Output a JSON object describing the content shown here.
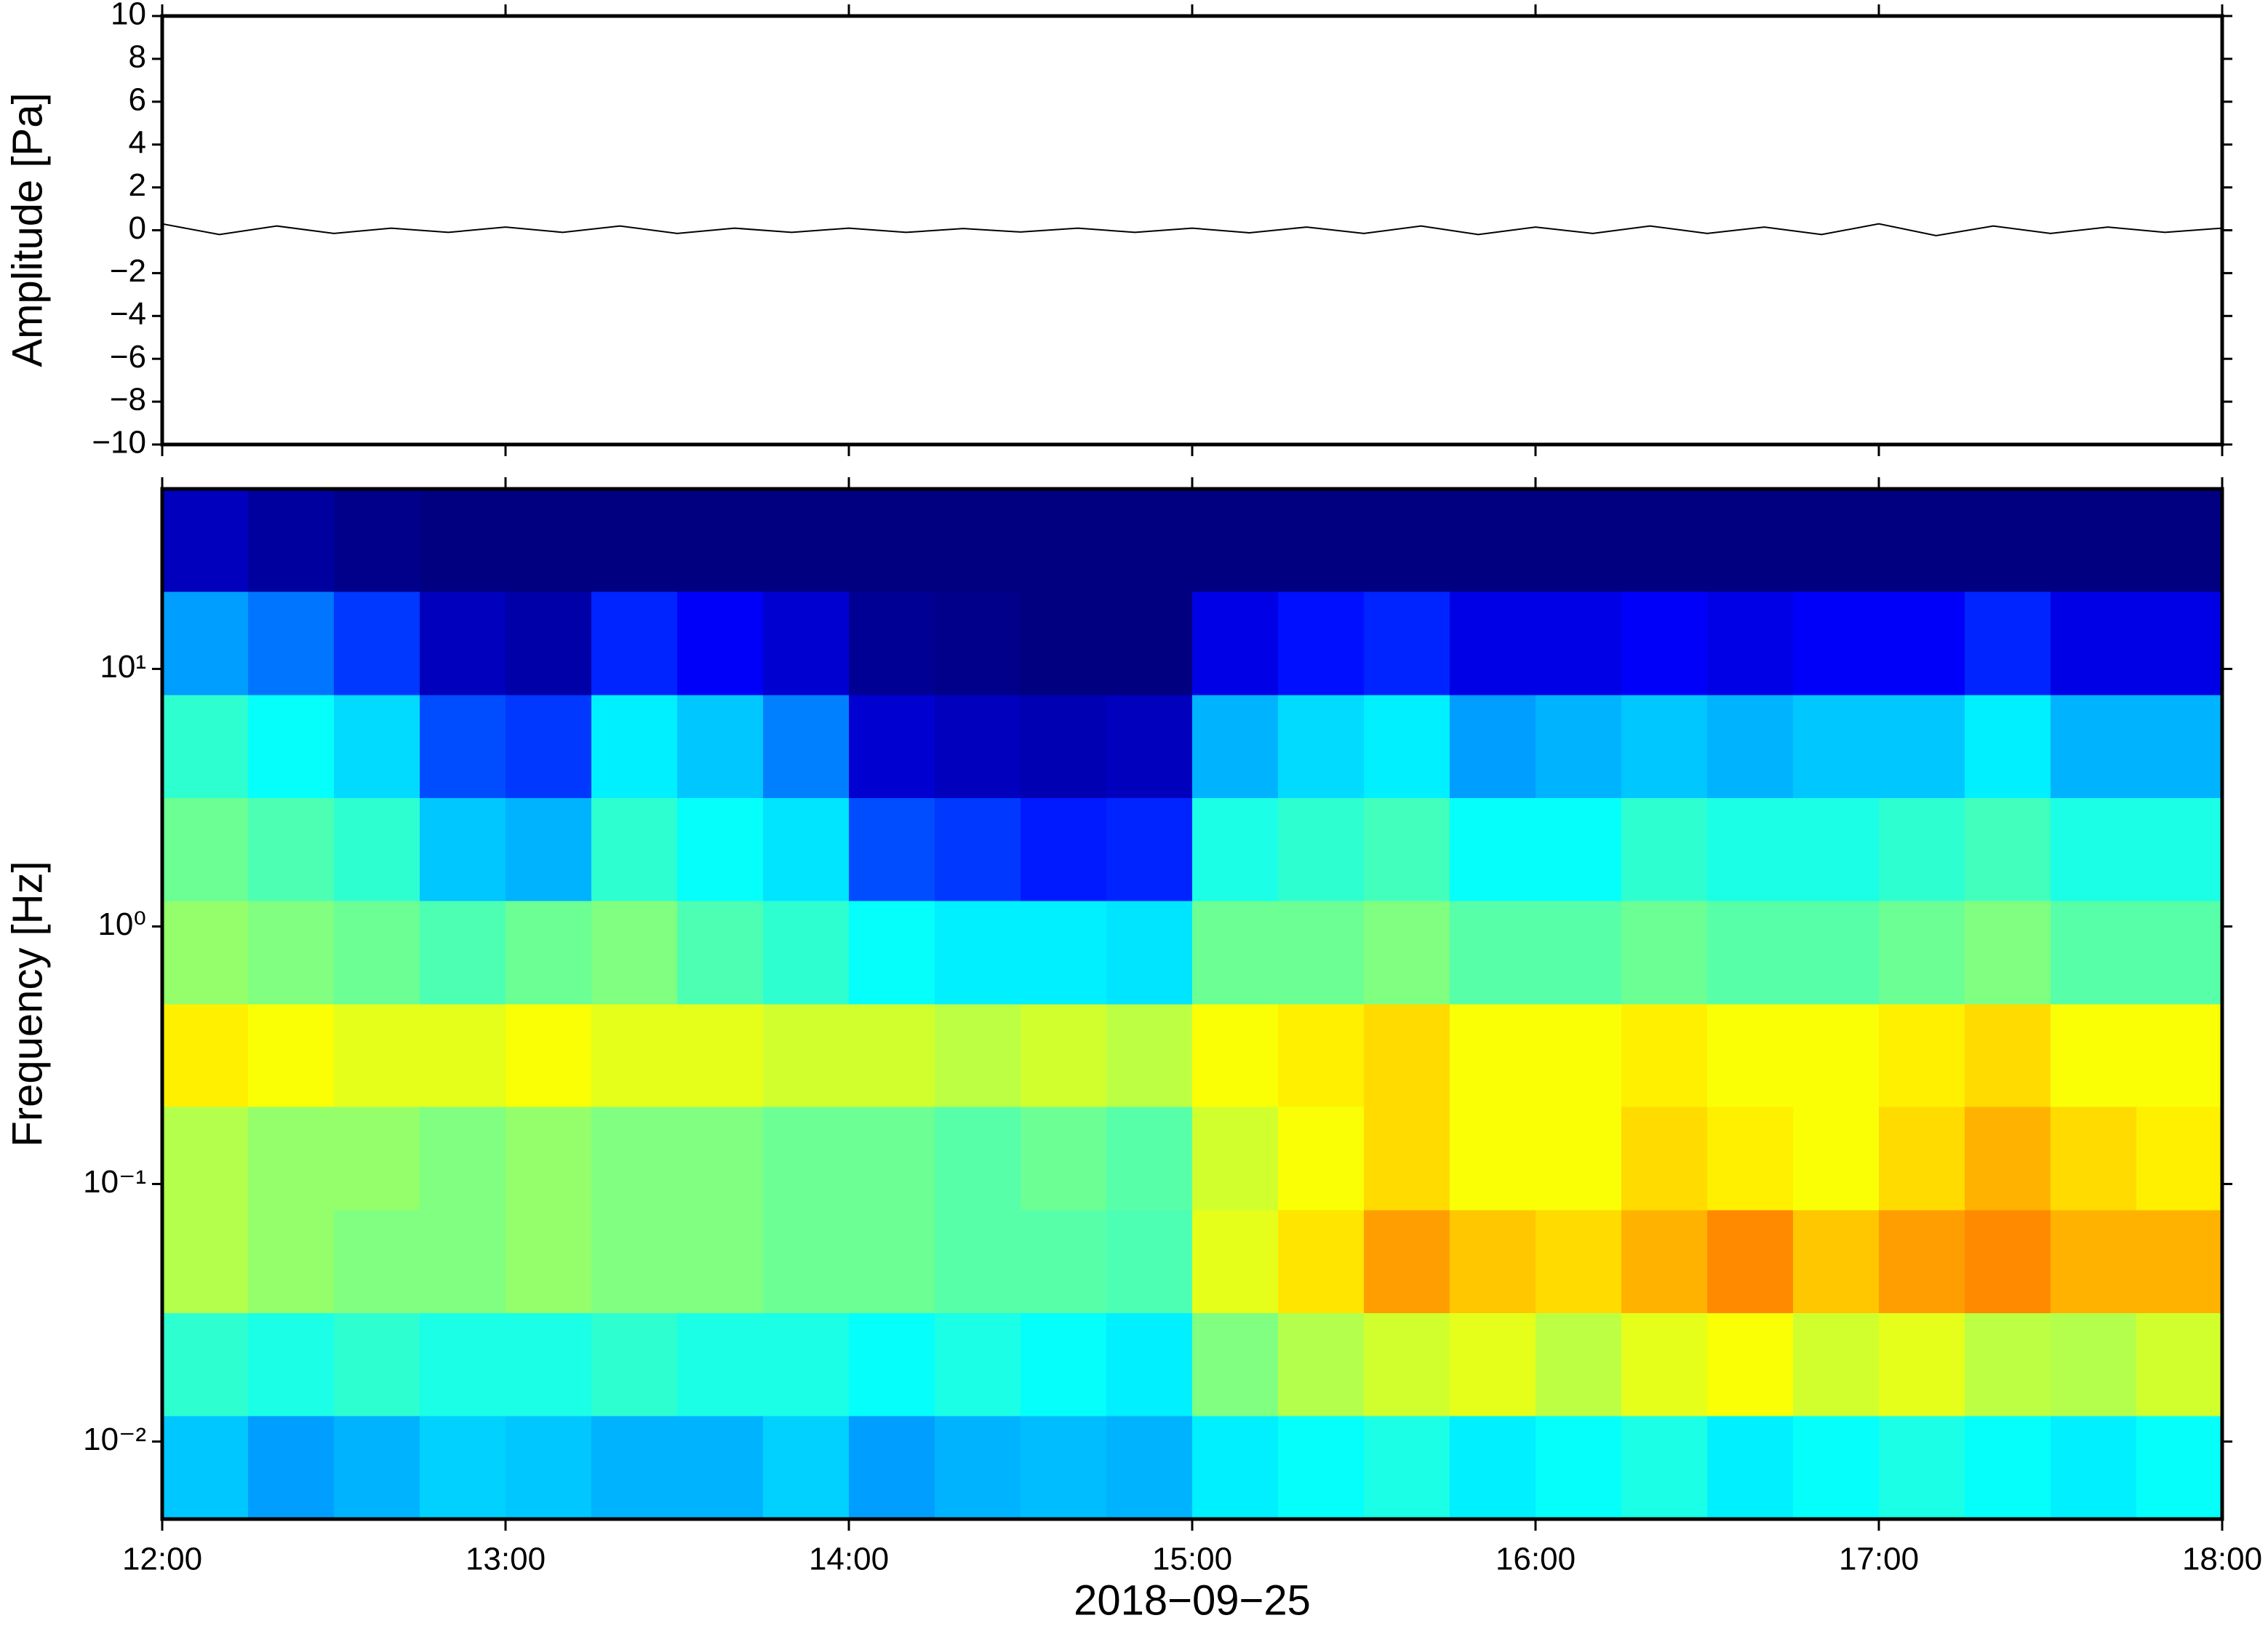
{
  "chart_data": [
    {
      "type": "line",
      "ylabel": "Amplitude [Pa]",
      "xlim": [
        "12:00",
        "18:00"
      ],
      "ylim": [
        -10,
        10
      ],
      "yticks": [
        {
          "value": -10,
          "label": "−10"
        },
        {
          "value": -8,
          "label": "−8"
        },
        {
          "value": -6,
          "label": "−6"
        },
        {
          "value": -4,
          "label": "−4"
        },
        {
          "value": -2,
          "label": "−2"
        },
        0,
        2,
        4,
        6,
        8,
        10
      ],
      "x": [
        "12:00",
        "12:10",
        "12:20",
        "12:30",
        "12:40",
        "12:50",
        "13:00",
        "13:10",
        "13:20",
        "13:30",
        "13:40",
        "13:50",
        "14:00",
        "14:10",
        "14:20",
        "14:30",
        "14:40",
        "14:50",
        "15:00",
        "15:10",
        "15:20",
        "15:30",
        "15:40",
        "15:50",
        "16:00",
        "16:10",
        "16:20",
        "16:30",
        "16:40",
        "16:50",
        "17:00",
        "17:10",
        "17:20",
        "17:30",
        "17:40",
        "17:50",
        "18:00"
      ],
      "series": [
        {
          "color": "#000000",
          "values": [
            0.3,
            -0.2,
            0.2,
            -0.15,
            0.1,
            -0.1,
            0.15,
            -0.1,
            0.2,
            -0.15,
            0.1,
            -0.1,
            0.1,
            -0.1,
            0.08,
            -0.08,
            0.1,
            -0.1,
            0.1,
            -0.12,
            0.15,
            -0.15,
            0.2,
            -0.2,
            0.15,
            -0.15,
            0.2,
            -0.15,
            0.15,
            -0.2,
            0.3,
            -0.25,
            0.2,
            -0.15,
            0.15,
            -0.1,
            0.1
          ]
        }
      ]
    },
    {
      "type": "heatmap",
      "ylabel": "Frequency [Hz]",
      "xlabel": "2018−09−25",
      "yscale": "log",
      "colormap": "jet",
      "xlim": [
        "12:00",
        "18:00"
      ],
      "xticks": [
        "12:00",
        "13:00",
        "14:00",
        "15:00",
        "16:00",
        "17:00",
        "18:00"
      ],
      "ylim": [
        0.005,
        50
      ],
      "yticks": [
        {
          "value": 0.01,
          "label": "10⁻²"
        },
        {
          "value": 0.1,
          "label": "10⁻¹"
        },
        {
          "value": 1,
          "label": "10⁰"
        },
        {
          "value": 10,
          "label": "10¹"
        }
      ],
      "x_bins": [
        "12:00",
        "12:15",
        "12:30",
        "12:45",
        "13:00",
        "13:15",
        "13:30",
        "13:45",
        "14:00",
        "14:15",
        "14:30",
        "14:45",
        "15:00",
        "15:15",
        "15:30",
        "15:45",
        "16:00",
        "16:15",
        "16:30",
        "16:45",
        "17:00",
        "17:15",
        "17:30",
        "17:45",
        "18:00"
      ],
      "y_bins": [
        0.005,
        0.0126,
        0.0316,
        0.0794,
        0.2,
        0.5,
        1.26,
        3.16,
        7.94,
        20,
        50
      ],
      "z": [
        [
          0.32,
          0.28,
          0.3,
          0.33,
          0.32,
          0.3,
          0.3,
          0.33,
          0.28,
          0.3,
          0.31,
          0.3,
          0.36,
          0.38,
          0.4,
          0.36,
          0.38,
          0.4,
          0.36,
          0.38,
          0.4,
          0.38,
          0.36,
          0.38
        ],
        [
          0.42,
          0.4,
          0.42,
          0.4,
          0.4,
          0.42,
          0.4,
          0.4,
          0.38,
          0.4,
          0.38,
          0.36,
          0.5,
          0.55,
          0.58,
          0.6,
          0.56,
          0.6,
          0.62,
          0.58,
          0.6,
          0.56,
          0.55,
          0.58
        ],
        [
          0.55,
          0.52,
          0.5,
          0.5,
          0.52,
          0.5,
          0.5,
          0.48,
          0.48,
          0.46,
          0.46,
          0.45,
          0.6,
          0.65,
          0.72,
          0.68,
          0.66,
          0.7,
          0.74,
          0.68,
          0.72,
          0.74,
          0.7,
          0.7
        ],
        [
          0.55,
          0.52,
          0.52,
          0.5,
          0.52,
          0.5,
          0.5,
          0.48,
          0.48,
          0.46,
          0.48,
          0.46,
          0.58,
          0.62,
          0.66,
          0.62,
          0.62,
          0.66,
          0.64,
          0.62,
          0.66,
          0.7,
          0.66,
          0.64
        ],
        [
          0.64,
          0.62,
          0.6,
          0.6,
          0.62,
          0.6,
          0.6,
          0.58,
          0.58,
          0.56,
          0.58,
          0.56,
          0.62,
          0.64,
          0.66,
          0.62,
          0.62,
          0.64,
          0.62,
          0.62,
          0.64,
          0.66,
          0.62,
          0.62
        ],
        [
          0.52,
          0.5,
          0.48,
          0.45,
          0.48,
          0.5,
          0.45,
          0.42,
          0.38,
          0.36,
          0.36,
          0.35,
          0.48,
          0.48,
          0.5,
          0.46,
          0.46,
          0.48,
          0.46,
          0.46,
          0.48,
          0.5,
          0.46,
          0.46
        ],
        [
          0.48,
          0.45,
          0.42,
          0.32,
          0.3,
          0.42,
          0.38,
          0.35,
          0.2,
          0.18,
          0.15,
          0.16,
          0.4,
          0.42,
          0.44,
          0.38,
          0.38,
          0.42,
          0.4,
          0.4,
          0.42,
          0.44,
          0.4,
          0.4
        ],
        [
          0.42,
          0.38,
          0.34,
          0.2,
          0.18,
          0.36,
          0.32,
          0.25,
          0.08,
          0.06,
          0.05,
          0.06,
          0.3,
          0.34,
          0.36,
          0.28,
          0.3,
          0.32,
          0.3,
          0.32,
          0.32,
          0.36,
          0.3,
          0.3
        ],
        [
          0.28,
          0.24,
          0.18,
          0.06,
          0.04,
          0.16,
          0.12,
          0.08,
          0.02,
          0.01,
          0.0,
          0.0,
          0.1,
          0.14,
          0.16,
          0.1,
          0.1,
          0.12,
          0.1,
          0.12,
          0.12,
          0.16,
          0.1,
          0.1
        ],
        [
          0.06,
          0.03,
          0.01,
          0,
          0,
          0,
          0,
          0,
          0,
          0,
          0,
          0,
          0,
          0,
          0,
          0,
          0,
          0,
          0,
          0,
          0,
          0,
          0,
          0
        ]
      ]
    }
  ]
}
